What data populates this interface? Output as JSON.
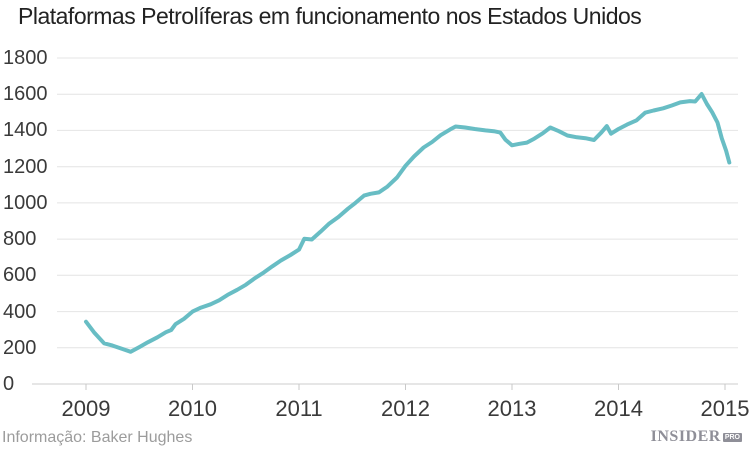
{
  "chart_data": {
    "type": "line",
    "title": "Plataformas Petrolíferas em funcionamento nos Estados Unidos",
    "xlabel": "",
    "ylabel": "",
    "series_name": "Plataformas petrolíferas em funcionamento",
    "ylim": [
      0,
      1800
    ],
    "xlim": [
      2008.57,
      2015.1
    ],
    "grid": "horizontal",
    "legend_position": "none",
    "line_color": "#68bdc4",
    "x_ticks": [
      "2009",
      "2010",
      "2011",
      "2012",
      "2013",
      "2014",
      "2015"
    ],
    "y_ticks": [
      0,
      200,
      400,
      600,
      800,
      1000,
      1200,
      1400,
      1600,
      1800
    ],
    "points": [
      [
        2009.0,
        344
      ],
      [
        2009.08,
        282
      ],
      [
        2009.17,
        225
      ],
      [
        2009.25,
        212
      ],
      [
        2009.33,
        196
      ],
      [
        2009.42,
        178
      ],
      [
        2009.5,
        204
      ],
      [
        2009.58,
        230
      ],
      [
        2009.67,
        258
      ],
      [
        2009.75,
        286
      ],
      [
        2009.8,
        298
      ],
      [
        2009.84,
        330
      ],
      [
        2009.92,
        360
      ],
      [
        2010.0,
        400
      ],
      [
        2010.08,
        422
      ],
      [
        2010.17,
        440
      ],
      [
        2010.25,
        462
      ],
      [
        2010.33,
        492
      ],
      [
        2010.42,
        520
      ],
      [
        2010.5,
        548
      ],
      [
        2010.58,
        582
      ],
      [
        2010.67,
        616
      ],
      [
        2010.75,
        650
      ],
      [
        2010.83,
        682
      ],
      [
        2010.92,
        712
      ],
      [
        2011.0,
        742
      ],
      [
        2011.05,
        802
      ],
      [
        2011.12,
        798
      ],
      [
        2011.2,
        840
      ],
      [
        2011.28,
        884
      ],
      [
        2011.37,
        922
      ],
      [
        2011.46,
        968
      ],
      [
        2011.53,
        1000
      ],
      [
        2011.61,
        1040
      ],
      [
        2011.67,
        1050
      ],
      [
        2011.75,
        1058
      ],
      [
        2011.83,
        1090
      ],
      [
        2011.92,
        1140
      ],
      [
        2012.0,
        1205
      ],
      [
        2012.08,
        1256
      ],
      [
        2012.17,
        1306
      ],
      [
        2012.25,
        1336
      ],
      [
        2012.33,
        1374
      ],
      [
        2012.42,
        1406
      ],
      [
        2012.47,
        1422
      ],
      [
        2012.56,
        1416
      ],
      [
        2012.65,
        1408
      ],
      [
        2012.75,
        1400
      ],
      [
        2012.83,
        1396
      ],
      [
        2012.89,
        1388
      ],
      [
        2012.94,
        1348
      ],
      [
        2013.0,
        1318
      ],
      [
        2013.07,
        1326
      ],
      [
        2013.14,
        1333
      ],
      [
        2013.21,
        1355
      ],
      [
        2013.29,
        1385
      ],
      [
        2013.36,
        1416
      ],
      [
        2013.44,
        1396
      ],
      [
        2013.52,
        1372
      ],
      [
        2013.61,
        1362
      ],
      [
        2013.69,
        1357
      ],
      [
        2013.77,
        1347
      ],
      [
        2013.84,
        1390
      ],
      [
        2013.89,
        1424
      ],
      [
        2013.93,
        1382
      ],
      [
        2014.0,
        1408
      ],
      [
        2014.08,
        1432
      ],
      [
        2014.17,
        1456
      ],
      [
        2014.25,
        1498
      ],
      [
        2014.33,
        1510
      ],
      [
        2014.42,
        1522
      ],
      [
        2014.5,
        1538
      ],
      [
        2014.58,
        1555
      ],
      [
        2014.67,
        1562
      ],
      [
        2014.72,
        1560
      ],
      [
        2014.78,
        1601
      ],
      [
        2014.83,
        1546
      ],
      [
        2014.88,
        1500
      ],
      [
        2014.93,
        1444
      ],
      [
        2014.97,
        1356
      ],
      [
        2015.01,
        1288
      ],
      [
        2015.04,
        1223
      ]
    ]
  },
  "footer": {
    "source": "Informação: Baker Hughes",
    "logo_text": "INSIDER",
    "logo_badge": "PRO"
  },
  "colors": {
    "line": "#68bdc4",
    "grid": "#e4e4e4",
    "zero_axis": "#cccccc",
    "tick": "#c9c9c9",
    "title": "#222222",
    "tick_label": "#3a3a3a",
    "source": "#9c9c9c",
    "logo": "#8f8f98"
  }
}
